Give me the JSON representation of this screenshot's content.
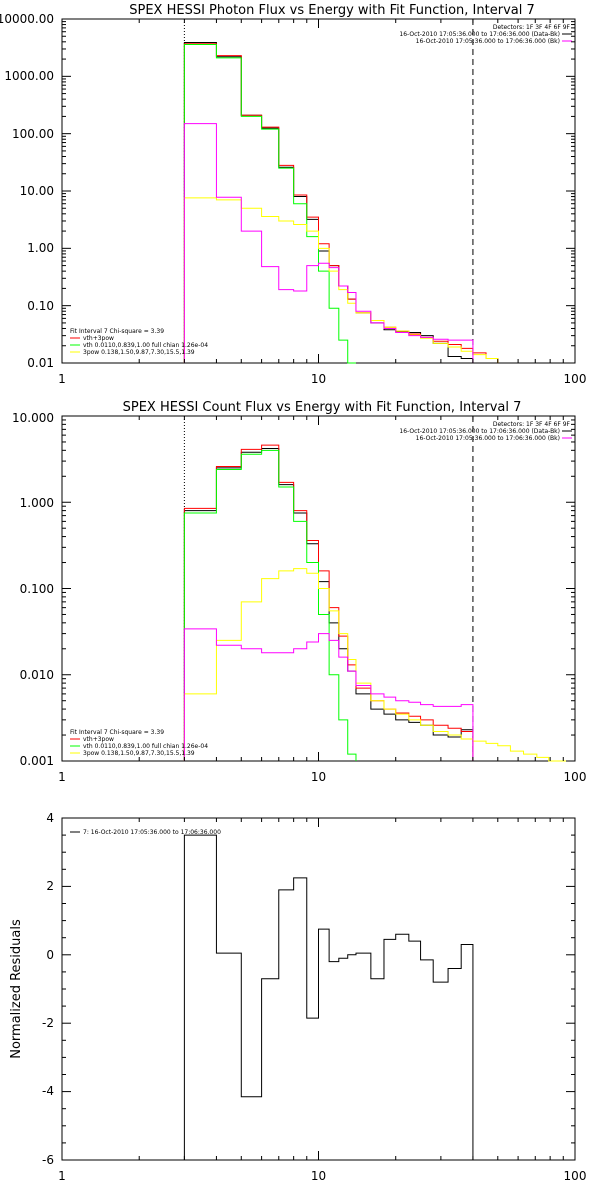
{
  "colors": {
    "data": "#000000",
    "total_fit": "#ff0000",
    "thermal": "#00ff00",
    "powerlaw": "#ffff00",
    "background": "#ff00ff"
  },
  "chart_data": [
    {
      "type": "line",
      "panel": "photon",
      "title": "SPEX HESSI Photon Flux vs Energy with Fit Function, Interval 7",
      "xscale": "log",
      "yscale": "log",
      "xlim": [
        1,
        100
      ],
      "ylim": [
        0.01,
        10000
      ],
      "x_ticks": [
        "1",
        "10",
        "100"
      ],
      "y_ticks": [
        "0.01",
        "0.10",
        "1.00",
        "10.00",
        "100.00",
        "1000.00",
        "10000.00"
      ],
      "legend_top_right": [
        "Detectors: 1F 3F 4F 6F 9F",
        "16-Oct-2010 17:05:36.000 to 17:06:36.000 (Data-Bk)",
        "16-Oct-2010 17:05:36.000 to 17:06:36.000 (Bk)"
      ],
      "fit_info": [
        "Fit Interval  7    Chi-square = 3.39",
        "vth+3pow",
        "vth 0.0110,0.839,1.00  full chian 1.26e-04",
        "3pow 0.138,1.50,9.87,7.30,15.5,1.39"
      ],
      "energy_edges": [
        3,
        4,
        5,
        6,
        7,
        8,
        9,
        10,
        11,
        12,
        13,
        14,
        16,
        18,
        20,
        22.5,
        25,
        28,
        32,
        36,
        40,
        45,
        50
      ],
      "series": [
        {
          "name": "16-Oct-2010 17:05:36.000 to 17:06:36.000 (Data-Bk)",
          "color_key": "data",
          "values": [
            3900,
            2200,
            210,
            125,
            26,
            8,
            3.2,
            0.9,
            0.5,
            0.22,
            0.13,
            0.075,
            0.05,
            0.038,
            0.035,
            0.034,
            0.03,
            0.022,
            0.013,
            0.012
          ]
        },
        {
          "name": "vth+3pow",
          "color_key": "total_fit",
          "values": [
            3700,
            2300,
            210,
            130,
            28,
            8.5,
            3.5,
            1.2,
            0.5,
            0.22,
            0.13,
            0.075,
            0.055,
            0.042,
            0.036,
            0.032,
            0.028,
            0.024,
            0.021,
            0.018,
            0.015,
            0.012
          ]
        },
        {
          "name": "vth 0.0110,0.839,1.00",
          "color_key": "thermal",
          "values": [
            3600,
            2100,
            200,
            120,
            25,
            6,
            1.6,
            0.4,
            0.09,
            0.025,
            0.009
          ]
        },
        {
          "name": "3pow 0.138,1.50,9.87,7.30,15.5,1.39",
          "color_key": "powerlaw",
          "values": [
            7.6,
            7.0,
            5.0,
            3.6,
            3.0,
            2.6,
            2.0,
            1.0,
            0.4,
            0.19,
            0.11,
            0.075,
            0.055,
            0.042,
            0.036,
            0.031,
            0.027,
            0.022,
            0.019,
            0.016,
            0.014,
            0.012
          ]
        },
        {
          "name": "16-Oct-2010 17:05:36.000 to 17:06:36.000 (Bk)",
          "color_key": "background",
          "values": [
            150,
            7.8,
            2.0,
            0.48,
            0.19,
            0.18,
            0.5,
            0.55,
            0.46,
            0.22,
            0.17,
            0.08,
            0.05,
            0.04,
            0.034,
            0.03,
            0.028,
            0.026,
            0.025,
            0.025
          ]
        }
      ],
      "vlines": [
        {
          "x": 3,
          "style": "dotted"
        },
        {
          "x": 40,
          "style": "dashed"
        }
      ]
    },
    {
      "type": "line",
      "panel": "count",
      "title": "SPEX HESSI Count Flux vs Energy with Fit Function, Interval 7",
      "xscale": "log",
      "yscale": "log",
      "xlim": [
        1,
        100
      ],
      "ylim": [
        0.001,
        10
      ],
      "x_ticks": [
        "1",
        "10",
        "100"
      ],
      "y_ticks": [
        "0.001",
        "0.010",
        "0.100",
        "1.000",
        "10.000"
      ],
      "legend_top_right": [
        "Detectors: 1F 3F 4F 6F 9F",
        "16-Oct-2010 17:05:36.000 to 17:06:36.000 (Data-Bk)",
        "16-Oct-2010 17:05:36.000 to 17:06:36.000 (Bk)"
      ],
      "fit_info": [
        "Fit Interval  7    Chi-square = 3.39",
        "vth+3pow",
        "vth 0.0110,0.839,1.00  full chian 1.26e-04",
        "3pow 0.138,1.50,9.87,7.30,15.5,1.39"
      ],
      "energy_edges": [
        3,
        4,
        5,
        6,
        7,
        8,
        9,
        10,
        11,
        12,
        13,
        14,
        16,
        18,
        20,
        22.5,
        25,
        28,
        32,
        36,
        40,
        45,
        50,
        56,
        63,
        71,
        79,
        89,
        100
      ],
      "series": [
        {
          "name": "16-Oct-2010 17:05:36.000 to 17:06:36.000 (Data-Bk)",
          "color_key": "data",
          "values": [
            0.8,
            2.5,
            3.8,
            4.2,
            1.6,
            0.75,
            0.33,
            0.12,
            0.04,
            0.02,
            0.011,
            0.006,
            0.004,
            0.0035,
            0.003,
            0.0028,
            0.0026,
            0.002,
            0.0019,
            0.0023
          ]
        },
        {
          "name": "vth+3pow",
          "color_key": "total_fit",
          "values": [
            0.85,
            2.6,
            4.1,
            4.6,
            1.7,
            0.8,
            0.36,
            0.16,
            0.06,
            0.028,
            0.013,
            0.007,
            0.005,
            0.004,
            0.0036,
            0.0033,
            0.003,
            0.0026,
            0.0024,
            0.0022
          ]
        },
        {
          "name": "vth 0.0110,0.839,1.00",
          "color_key": "thermal",
          "values": [
            0.75,
            2.4,
            3.6,
            4.0,
            1.5,
            0.6,
            0.2,
            0.05,
            0.01,
            0.003,
            0.0012
          ]
        },
        {
          "name": "3pow 0.138,1.50,9.87,7.30,15.5,1.39",
          "color_key": "powerlaw",
          "values": [
            0.006,
            0.025,
            0.07,
            0.13,
            0.16,
            0.17,
            0.15,
            0.1,
            0.055,
            0.03,
            0.015,
            0.008,
            0.005,
            0.004,
            0.0035,
            0.003,
            0.0026,
            0.0022,
            0.002,
            0.0018,
            0.0017,
            0.0016,
            0.0015,
            0.0013,
            0.0012,
            0.0011,
            0.001,
            0.001
          ]
        },
        {
          "name": "16-Oct-2010 17:05:36.000 to 17:06:36.000 (Bk)",
          "color_key": "background",
          "values": [
            0.034,
            0.022,
            0.02,
            0.018,
            0.018,
            0.02,
            0.024,
            0.03,
            0.025,
            0.016,
            0.011,
            0.0075,
            0.006,
            0.0055,
            0.005,
            0.0048,
            0.0045,
            0.0043,
            0.0043,
            0.0045
          ]
        }
      ],
      "vlines": [
        {
          "x": 3,
          "style": "dotted"
        },
        {
          "x": 40,
          "style": "dashed"
        }
      ]
    },
    {
      "type": "line",
      "panel": "residuals",
      "title": "",
      "xscale": "log",
      "yscale": "linear",
      "xlim": [
        1,
        100
      ],
      "ylim": [
        -6,
        4
      ],
      "x_ticks": [
        "1",
        "10",
        "100"
      ],
      "y_ticks": [
        "-6",
        "-4",
        "-2",
        "0",
        "2",
        "4"
      ],
      "ylabel": "Normalized Residuals",
      "legend": "7: 16-Oct-2010 17:05:36.000 to 17:06:36.000",
      "energy_edges": [
        3,
        4,
        5,
        6,
        7,
        8,
        9,
        10,
        11,
        12,
        13,
        14,
        16,
        18,
        20,
        22.5,
        25,
        28,
        32,
        36,
        40
      ],
      "series": [
        {
          "name": "7: 16-Oct-2010 17:05:36.000 to 17:06:36.000",
          "color_key": "data",
          "values": [
            3.5,
            0.05,
            -4.15,
            -0.7,
            1.9,
            2.25,
            -1.85,
            0.75,
            -0.2,
            -0.1,
            0.0,
            0.05,
            -0.7,
            0.45,
            0.6,
            0.4,
            -0.15,
            -0.8,
            -0.4,
            0.3
          ]
        }
      ],
      "vlines": [
        {
          "x": 3,
          "style": "solid"
        },
        {
          "x": 40,
          "style": "solid"
        }
      ]
    }
  ]
}
